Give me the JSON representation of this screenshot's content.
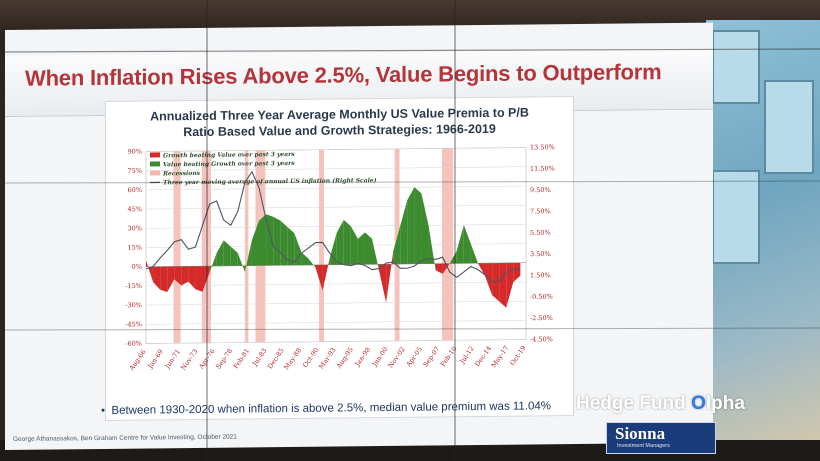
{
  "slide": {
    "title": "When Inflation Rises Above 2.5%, Value Begins to Outperform",
    "bullet_mark": "•",
    "bullet": "Between 1930-2020 when inflation is above 2.5%, median value premium was 11.04%",
    "source": "George Athanassakos, Ben Graham Centre for Value Investing, October 2021"
  },
  "watermark": {
    "prefix": "Hedge Fund ",
    "o": "O",
    "suffix": "lpha"
  },
  "logo": {
    "name": "Sionna",
    "tagline": "Investment Managers"
  },
  "colors": {
    "title": "#b5343a",
    "negative": "#d42a2a",
    "positive": "#3d8b2f",
    "recession": "#f3b9b0",
    "inflation_line": "#4d5560"
  },
  "chart_data": {
    "type": "area",
    "title_line1": "Annualized Three Year Average Monthly US Value Premia to P/B",
    "title_line2": "Ratio Based Value and Growth Strategies: 1966-2019",
    "left_axis": {
      "ticks": [
        "90%",
        "75%",
        "60%",
        "45%",
        "30%",
        "15%",
        "0%",
        "-15%",
        "-30%",
        "-45%",
        "-60%"
      ],
      "ylim": [
        -60,
        90
      ]
    },
    "right_axis": {
      "ticks": [
        "13.50%",
        "11.50%",
        "9.50%",
        "7.50%",
        "5.50%",
        "3.50%",
        "1.50%",
        "-0.50%",
        "-2.50%",
        "-4.50%"
      ],
      "ylim": [
        -4.5,
        13.5
      ]
    },
    "x_ticks": [
      "Aug-66",
      "Jan-69",
      "Jun-71",
      "Nov-73",
      "Apr-76",
      "Sep-78",
      "Feb-81",
      "Jul-83",
      "Dec-85",
      "May-88",
      "Oct-90",
      "Mar-93",
      "Aug-95",
      "Jan-98",
      "Jun-00",
      "Nov-02",
      "Apr-05",
      "Sep-07",
      "Feb-10",
      "Jul-12",
      "Dec-14",
      "May-17",
      "Oct-19"
    ],
    "legend": [
      {
        "label": "Growth beating Value over past 3 years",
        "color": "#d42a2a"
      },
      {
        "label": "Value beating Growth over past 3 years",
        "color": "#3d8b2f"
      },
      {
        "label": "Recessions",
        "color": "#f3b9b0"
      },
      {
        "label": "Three year moving average of annual US inflation (Right Scale)",
        "color": "#4d5560"
      }
    ],
    "recessions": [
      [
        1969.9,
        1970.9
      ],
      [
        1973.9,
        1975.2
      ],
      [
        1980.0,
        1980.5
      ],
      [
        1981.5,
        1982.9
      ],
      [
        1990.5,
        1991.2
      ],
      [
        2001.2,
        2001.9
      ],
      [
        2007.9,
        2009.5
      ]
    ],
    "premium": {
      "x": [
        1966,
        1967,
        1968,
        1969,
        1970,
        1971,
        1972,
        1973,
        1974,
        1975,
        1976,
        1977,
        1978,
        1979,
        1980,
        1981,
        1982,
        1983,
        1984,
        1985,
        1986,
        1987,
        1988,
        1989,
        1990,
        1991,
        1992,
        1993,
        1994,
        1995,
        1996,
        1997,
        1998,
        1999,
        2000,
        2001,
        2002,
        2003,
        2004,
        2005,
        2006,
        2007,
        2008,
        2009,
        2010,
        2011,
        2012,
        2013,
        2014,
        2015,
        2016,
        2017,
        2018,
        2019
      ],
      "values": [
        5,
        -12,
        -18,
        -20,
        -10,
        -15,
        -12,
        -18,
        -20,
        -5,
        10,
        20,
        15,
        10,
        -5,
        20,
        35,
        40,
        38,
        35,
        30,
        25,
        10,
        5,
        -2,
        -20,
        5,
        25,
        35,
        30,
        20,
        25,
        20,
        -5,
        -30,
        10,
        30,
        50,
        60,
        55,
        30,
        -5,
        -8,
        0,
        10,
        30,
        15,
        0,
        -10,
        -25,
        -30,
        -35,
        -15,
        -10
      ]
    },
    "inflation": {
      "x": [
        1966,
        1967,
        1968,
        1969,
        1970,
        1971,
        1972,
        1973,
        1974,
        1975,
        1976,
        1977,
        1978,
        1979,
        1980,
        1981,
        1982,
        1983,
        1984,
        1985,
        1986,
        1987,
        1988,
        1989,
        1990,
        1991,
        1992,
        1993,
        1994,
        1995,
        1996,
        1997,
        1998,
        1999,
        2000,
        2001,
        2002,
        2003,
        2004,
        2005,
        2006,
        2007,
        2008,
        2009,
        2010,
        2011,
        2012,
        2013,
        2014,
        2015,
        2016,
        2017,
        2018,
        2019
      ],
      "values": [
        2.5,
        2.7,
        3.5,
        4.2,
        5.0,
        5.2,
        4.3,
        4.5,
        6.5,
        8.5,
        8.8,
        7.0,
        6.5,
        7.8,
        10.5,
        11.5,
        10.0,
        7.0,
        4.5,
        3.9,
        3.2,
        3.0,
        3.8,
        4.3,
        4.8,
        4.8,
        3.8,
        3.0,
        2.7,
        2.6,
        2.8,
        2.6,
        2.2,
        2.3,
        2.8,
        2.9,
        2.3,
        2.3,
        2.5,
        3.0,
        3.2,
        3.1,
        3.3,
        1.9,
        1.4,
        1.9,
        2.4,
        2.1,
        1.6,
        0.9,
        1.0,
        1.8,
        2.1,
        2.1
      ]
    }
  }
}
